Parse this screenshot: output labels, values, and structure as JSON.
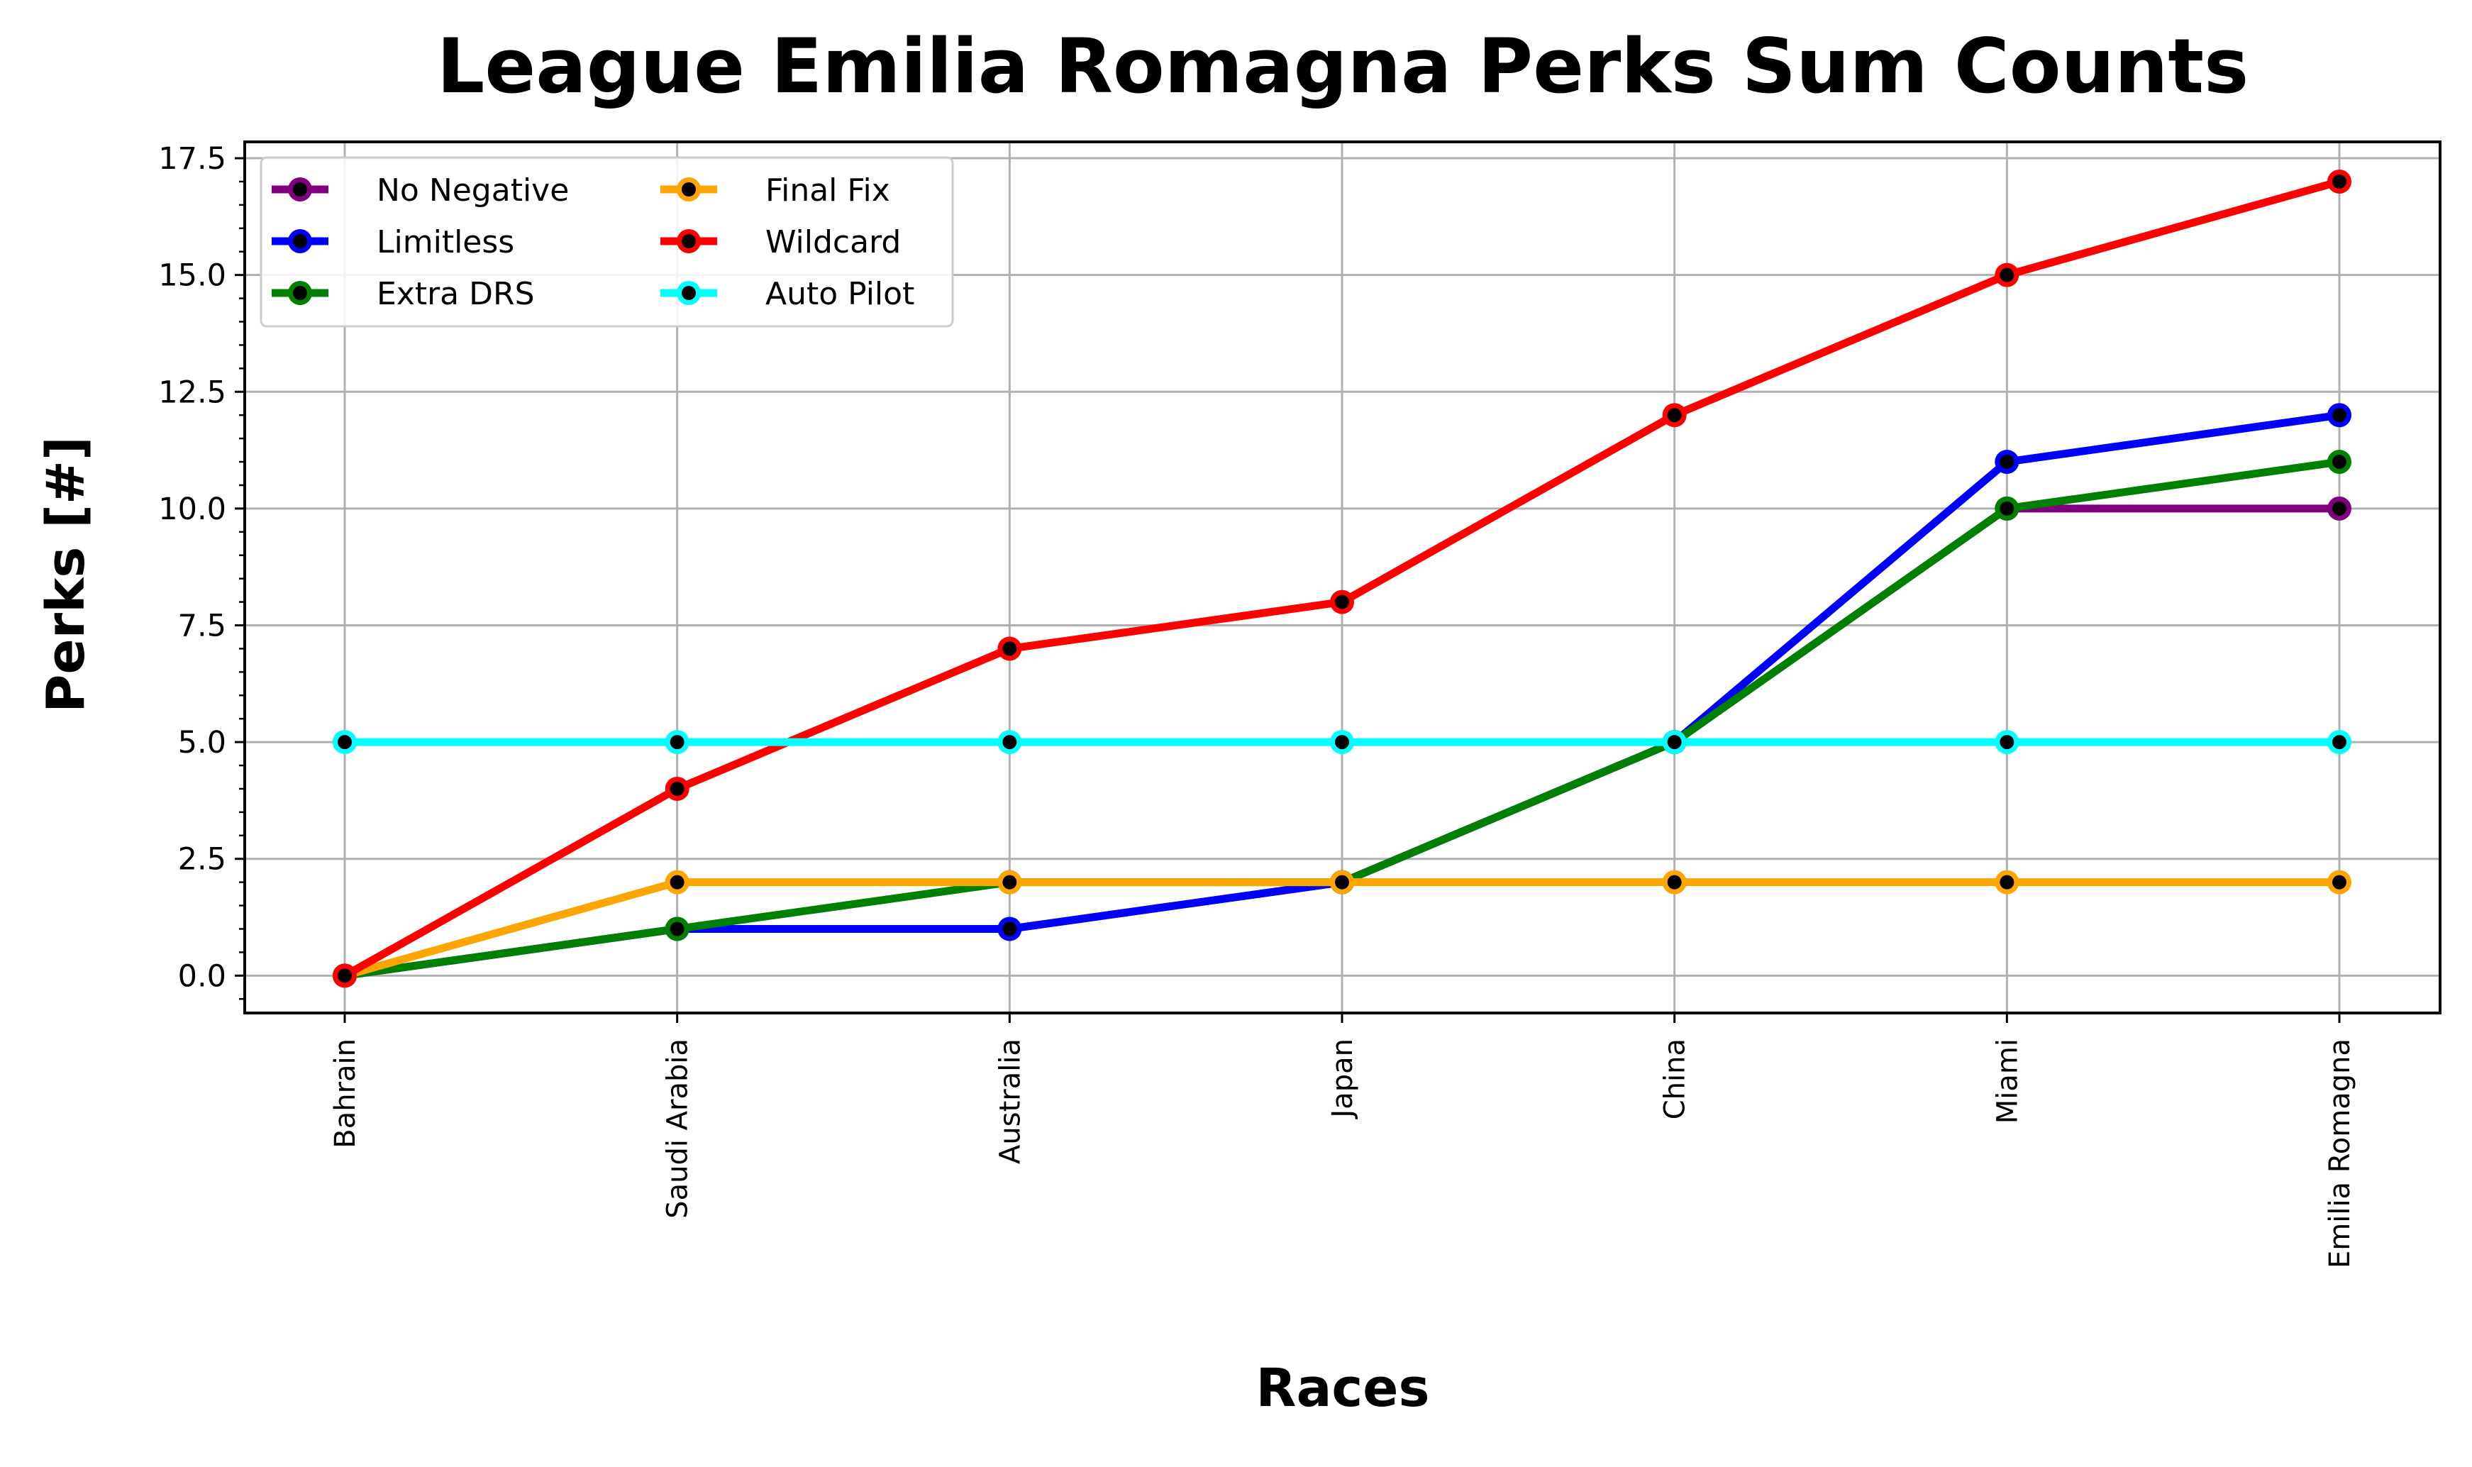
{
  "chart_data": {
    "type": "line",
    "title": "League Emilia Romagna Perks Sum Counts",
    "xlabel": "Races",
    "ylabel": "Perks [#]",
    "categories": [
      "Bahrain",
      "Saudi Arabia",
      "Australia",
      "Japan",
      "China",
      "Miami",
      "Emilia Romagna"
    ],
    "ylim": [
      -0.8,
      17.85
    ],
    "yticks": [
      0.0,
      2.5,
      5.0,
      7.5,
      10.0,
      12.5,
      15.0,
      17.5
    ],
    "ytick_labels": [
      "0.0",
      "2.5",
      "5.0",
      "7.5",
      "10.0",
      "12.5",
      "15.0",
      "17.5"
    ],
    "y_minor_step": 0.5,
    "grid": true,
    "legend_position": "upper-left",
    "legend_columns": 2,
    "marker_center_color": "#000000",
    "series": [
      {
        "name": "No Negative",
        "color": "#800080",
        "values": [
          0,
          1,
          1,
          2,
          5,
          10,
          10
        ]
      },
      {
        "name": "Limitless",
        "color": "#0000ff",
        "values": [
          0,
          1,
          1,
          2,
          5,
          11,
          12
        ]
      },
      {
        "name": "Extra DRS",
        "color": "#008000",
        "values": [
          0,
          1,
          2,
          2,
          5,
          10,
          11
        ]
      },
      {
        "name": "Final Fix",
        "color": "#ffa500",
        "values": [
          0,
          2,
          2,
          2,
          2,
          2,
          2
        ]
      },
      {
        "name": "Wildcard",
        "color": "#ff0000",
        "values": [
          0,
          4,
          7,
          8,
          12,
          15,
          17
        ]
      },
      {
        "name": "Auto Pilot",
        "color": "#00ffff",
        "values": [
          5,
          5,
          5,
          5,
          5,
          5,
          5
        ]
      }
    ]
  }
}
